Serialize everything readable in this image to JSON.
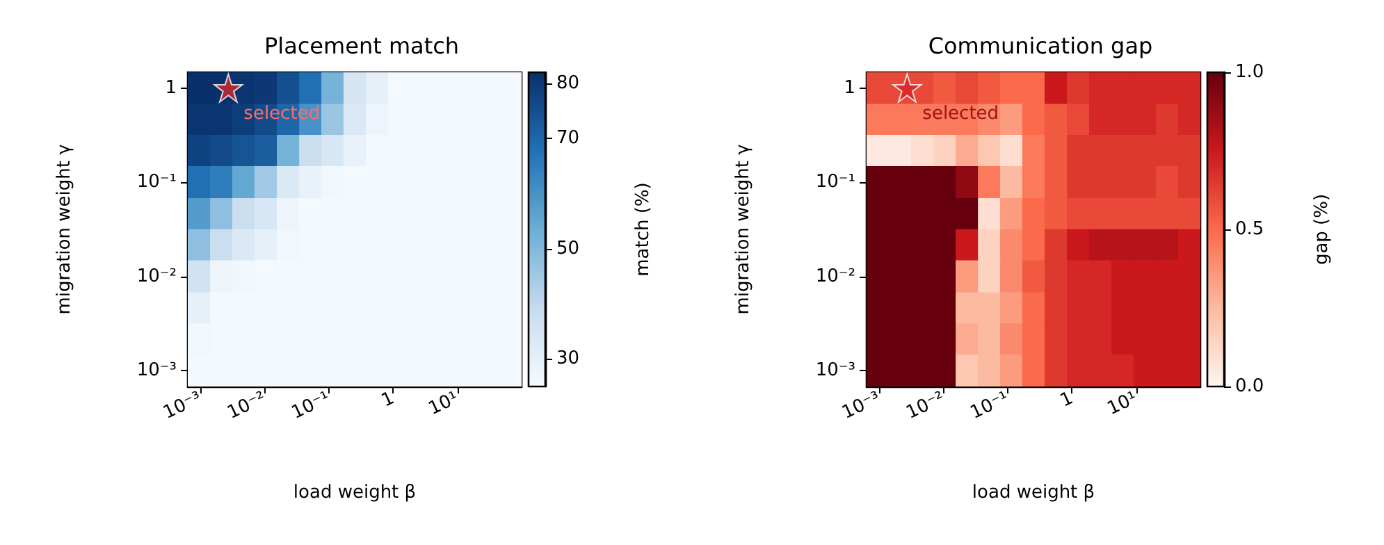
{
  "chart_data": [
    {
      "type": "heatmap",
      "title": "Placement match",
      "xlabel": "load weight β",
      "ylabel": "migration weight γ",
      "clabel": "match (%)",
      "log": "xy",
      "x": [
        0.00094,
        0.0021,
        0.0046,
        0.0103,
        0.023,
        0.051,
        0.113,
        0.25,
        0.56,
        1.24,
        2.75,
        6.1,
        13.6,
        30,
        67
      ],
      "y": [
        1,
        0.46,
        0.22,
        0.1,
        0.046,
        0.022,
        0.01,
        0.0046,
        0.0022,
        0.001
      ],
      "xlim": [
        0.00063,
        100
      ],
      "ylim": [
        0.00068,
        1.47
      ],
      "xticks": [
        {
          "value": 0.001,
          "label": "10⁻³"
        },
        {
          "value": 0.01,
          "label": "10⁻²"
        },
        {
          "value": 0.1,
          "label": "10⁻¹"
        },
        1,
        {
          "value": 10,
          "label": "10¹"
        }
      ],
      "yticks": [
        {
          "value": 0.001,
          "label": "10⁻³"
        },
        {
          "value": 0.01,
          "label": "10⁻²"
        },
        {
          "value": 0.1,
          "label": "10⁻¹"
        },
        1
      ],
      "clim": [
        25,
        82
      ],
      "cticks": [
        30,
        50,
        70,
        80
      ],
      "colors": [
        "#f7fbff",
        "#c6dbef",
        "#6baed6",
        "#2171b5",
        "#08306b"
      ],
      "cells": [
        [
          82,
          82,
          81,
          80,
          75,
          68,
          52,
          35,
          30,
          26,
          26,
          26,
          26,
          26,
          26
        ],
        [
          81,
          81,
          79,
          76,
          70,
          60,
          46,
          33,
          28,
          26,
          26,
          26,
          26,
          26,
          26
        ],
        [
          78,
          76,
          74,
          72,
          52,
          38,
          34,
          29,
          26,
          26,
          26,
          26,
          26,
          26,
          26
        ],
        [
          68,
          65,
          55,
          45,
          33,
          29,
          27,
          26,
          26,
          26,
          26,
          26,
          26,
          26,
          26
        ],
        [
          58,
          48,
          38,
          34,
          28,
          26,
          26,
          26,
          26,
          26,
          26,
          26,
          26,
          26,
          26
        ],
        [
          48,
          38,
          33,
          30,
          27,
          26,
          26,
          26,
          26,
          26,
          26,
          26,
          26,
          26,
          26
        ],
        [
          36,
          28,
          27,
          26,
          26,
          26,
          26,
          26,
          26,
          26,
          26,
          26,
          26,
          26,
          26
        ],
        [
          30,
          26,
          26,
          26,
          26,
          26,
          26,
          26,
          26,
          26,
          26,
          26,
          26,
          26,
          26
        ],
        [
          27,
          26,
          26,
          26,
          26,
          26,
          26,
          26,
          26,
          26,
          26,
          26,
          26,
          26,
          26
        ],
        [
          26,
          26,
          26,
          26,
          26,
          26,
          26,
          26,
          26,
          26,
          26,
          26,
          26,
          26,
          26
        ]
      ],
      "series": [
        {
          "type": "scatter",
          "x": [
            0.0027
          ],
          "values": [
            1
          ],
          "color": "#d62728"
        }
      ],
      "marker": "star",
      "annotations": [
        {
          "text": "selected",
          "x": 0.0027,
          "y": 1
        }
      ]
    },
    {
      "type": "heatmap",
      "title": "Communication gap",
      "xlabel": "load weight β",
      "ylabel": "migration weight γ",
      "clabel": "gap (%)",
      "log": "xy",
      "x": [
        0.00094,
        0.0021,
        0.0046,
        0.0103,
        0.023,
        0.051,
        0.113,
        0.25,
        0.56,
        1.24,
        2.75,
        6.1,
        13.6,
        30,
        67
      ],
      "y": [
        1,
        0.46,
        0.22,
        0.1,
        0.046,
        0.022,
        0.01,
        0.0046,
        0.0022,
        0.001
      ],
      "xlim": [
        0.00063,
        100
      ],
      "ylim": [
        0.00068,
        1.47
      ],
      "xticks": [
        {
          "value": 0.001,
          "label": "10⁻³"
        },
        {
          "value": 0.01,
          "label": "10⁻²"
        },
        {
          "value": 0.1,
          "label": "10⁻¹"
        },
        1,
        {
          "value": 10,
          "label": "10¹"
        }
      ],
      "yticks": [
        {
          "value": 0.001,
          "label": "10⁻³"
        },
        {
          "value": 0.01,
          "label": "10⁻²"
        },
        {
          "value": 0.1,
          "label": "10⁻¹"
        },
        1
      ],
      "clim": [
        0,
        1
      ],
      "cticks": [
        {
          "value": 0,
          "label": "0.0"
        },
        0.5,
        {
          "value": 1,
          "label": "1.0"
        }
      ],
      "colors": [
        "#fff5f0",
        "#fcbba1",
        "#fb6a4a",
        "#cb181d",
        "#67000d"
      ],
      "cells": [
        [
          0.6,
          0.6,
          0.6,
          0.55,
          0.6,
          0.55,
          0.5,
          0.5,
          0.75,
          0.65,
          0.7,
          0.7,
          0.7,
          0.7,
          0.7
        ],
        [
          0.45,
          0.45,
          0.45,
          0.45,
          0.45,
          0.4,
          0.35,
          0.5,
          0.55,
          0.6,
          0.7,
          0.7,
          0.7,
          0.65,
          0.7
        ],
        [
          0.05,
          0.05,
          0.1,
          0.15,
          0.3,
          0.2,
          0.1,
          0.45,
          0.55,
          0.65,
          0.65,
          0.65,
          0.65,
          0.65,
          0.65
        ],
        [
          1,
          1,
          1,
          1,
          0.9,
          0.45,
          0.25,
          0.45,
          0.55,
          0.65,
          0.65,
          0.65,
          0.65,
          0.6,
          0.65
        ],
        [
          1,
          1,
          1,
          1,
          1,
          0.1,
          0.35,
          0.5,
          0.55,
          0.6,
          0.6,
          0.6,
          0.6,
          0.6,
          0.6
        ],
        [
          1,
          1,
          1,
          1,
          0.75,
          0.15,
          0.4,
          0.5,
          0.65,
          0.75,
          0.8,
          0.8,
          0.8,
          0.8,
          0.75
        ],
        [
          1,
          1,
          1,
          1,
          0.35,
          0.15,
          0.4,
          0.55,
          0.65,
          0.7,
          0.7,
          0.75,
          0.75,
          0.75,
          0.75
        ],
        [
          1,
          1,
          1,
          1,
          0.25,
          0.25,
          0.35,
          0.5,
          0.65,
          0.7,
          0.7,
          0.75,
          0.75,
          0.75,
          0.75
        ],
        [
          1,
          1,
          1,
          1,
          0.3,
          0.25,
          0.4,
          0.5,
          0.65,
          0.7,
          0.7,
          0.75,
          0.75,
          0.75,
          0.75
        ],
        [
          1,
          1,
          1,
          1,
          0.2,
          0.25,
          0.35,
          0.5,
          0.65,
          0.7,
          0.7,
          0.7,
          0.75,
          0.75,
          0.75
        ]
      ],
      "series": [
        {
          "type": "scatter",
          "x": [
            0.0027
          ],
          "values": [
            1
          ],
          "color": "#d62728"
        }
      ],
      "marker": "star",
      "annotations": [
        {
          "text": "selected",
          "x": 0.0027,
          "y": 1
        }
      ]
    }
  ]
}
